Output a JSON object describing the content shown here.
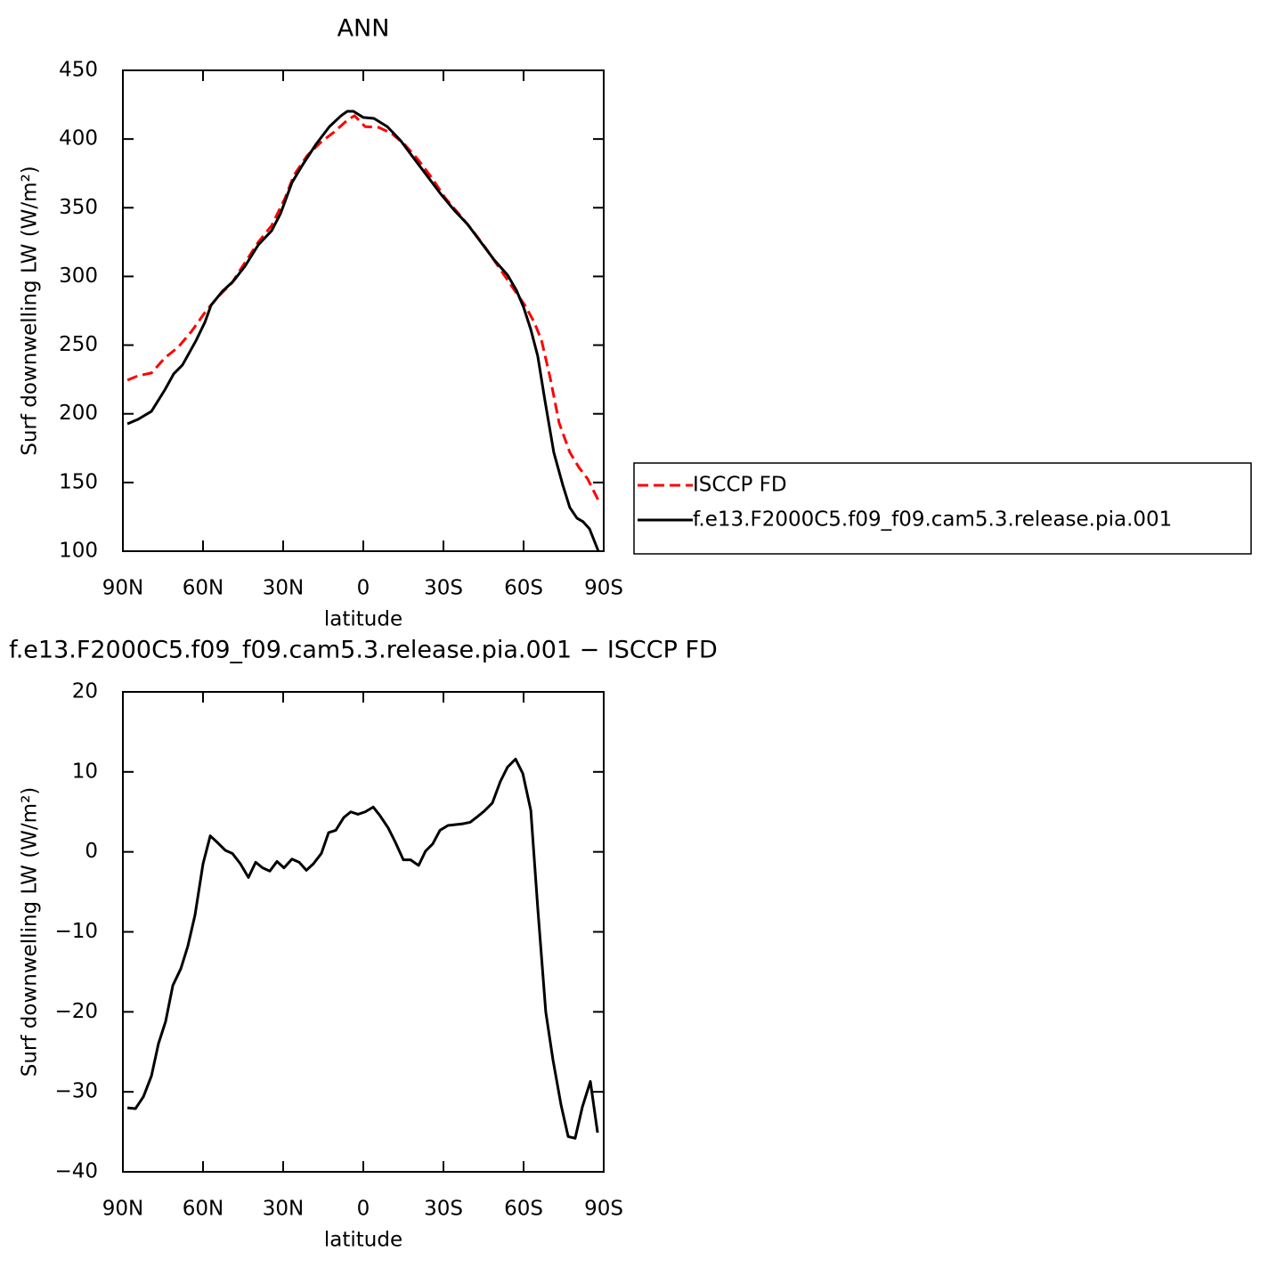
{
  "chart_data": [
    {
      "type": "line",
      "title": "ANN",
      "xlabel": "latitude",
      "ylabel": "Surf downwelling LW (W/m²)",
      "xlim": [
        90,
        -90
      ],
      "xticks": [
        {
          "value": 90,
          "label": "90N"
        },
        {
          "value": 60,
          "label": "60N"
        },
        {
          "value": 30,
          "label": "30N"
        },
        0,
        {
          "value": -30,
          "label": "30S"
        },
        {
          "value": -60,
          "label": "60S"
        },
        {
          "value": -90,
          "label": "90S"
        }
      ],
      "ylim": [
        100,
        450
      ],
      "yticks": [
        100,
        150,
        200,
        250,
        300,
        350,
        400,
        450
      ],
      "legend": "right",
      "series": [
        {
          "name": "ISCCP FD",
          "color": "#ff0000",
          "style": "dashed",
          "x": [
            88.3,
            84.3,
            79.3,
            74.3,
            69.3,
            64.3,
            59.3,
            54.3,
            49.3,
            44.3,
            39.3,
            34.3,
            29.3,
            26,
            21,
            16,
            11,
            6,
            3.3,
            -0.7,
            -5.7,
            -10.7,
            -15.7,
            -20.7,
            -25.7,
            -30.7,
            -35.7,
            -40.7,
            -45.7,
            -50.7,
            -55.7,
            -60.7,
            -64,
            -66.7,
            -70,
            -73.3,
            -77.3,
            -80.7,
            -84,
            -88
          ],
          "values": [
            224.5,
            227.7,
            229.7,
            240.7,
            248.5,
            260,
            273.7,
            285.4,
            295,
            310,
            325,
            337,
            357,
            373.5,
            388,
            397.5,
            405,
            413.7,
            417,
            409,
            408.5,
            404,
            395.6,
            384.5,
            371.6,
            357,
            345.7,
            334,
            321,
            306.8,
            292.5,
            278.3,
            266.6,
            253.6,
            225.8,
            193.4,
            172,
            161,
            152.5,
            137
          ]
        },
        {
          "name": "f.e13.F2000C5.f09_f09.cam5.3.release.pia.001",
          "color": "#000000",
          "style": "solid",
          "x": [
            88.3,
            84.3,
            79.3,
            74.3,
            71,
            67.7,
            62.7,
            59.3,
            57,
            52.7,
            48.7,
            44.3,
            39.3,
            34.3,
            31,
            26.7,
            22.7,
            17.7,
            12.7,
            8.3,
            6,
            3.7,
            0,
            -4,
            -9,
            -14,
            -19,
            -24,
            -29,
            -34,
            -39,
            -44,
            -49,
            -54,
            -57.3,
            -60,
            -62.7,
            -65.3,
            -68,
            -71.3,
            -74.7,
            -77.3,
            -80,
            -82.3,
            -84.7,
            -88
          ],
          "values": [
            192.7,
            196,
            201.8,
            217.4,
            229,
            235.5,
            253,
            266.6,
            279,
            289.3,
            296.4,
            307.4,
            323,
            333.3,
            345.7,
            368.3,
            381.3,
            396.2,
            409,
            417,
            420.2,
            420.2,
            415.7,
            415,
            409,
            398.8,
            385.8,
            372.9,
            360,
            348.3,
            338,
            325,
            312,
            301,
            290,
            277.6,
            261.4,
            242,
            209.6,
            172,
            148,
            131.8,
            124,
            121.4,
            116.2,
            100
          ]
        }
      ]
    },
    {
      "type": "line",
      "title": "f.e13.F2000C5.f09_f09.cam5.3.release.pia.001 − ISCCP FD",
      "xlabel": "latitude",
      "ylabel": "Surf downwelling LW (W/m²)",
      "xlim": [
        90,
        -90
      ],
      "xticks": [
        {
          "value": 90,
          "label": "90N"
        },
        {
          "value": 60,
          "label": "60N"
        },
        {
          "value": 30,
          "label": "30N"
        },
        0,
        {
          "value": -30,
          "label": "30S"
        },
        {
          "value": -60,
          "label": "60S"
        },
        {
          "value": -90,
          "label": "90S"
        }
      ],
      "ylim": [
        -40,
        20
      ],
      "yticks": [
        {
          "value": -40,
          "label": "−40"
        },
        {
          "value": -30,
          "label": "−30"
        },
        {
          "value": -20,
          "label": "−20"
        },
        {
          "value": -10,
          "label": "−10"
        },
        0,
        10,
        20
      ],
      "series": [
        {
          "color": "#000000",
          "style": "solid",
          "x": [
            88.3,
            85.3,
            82.3,
            79.3,
            76.7,
            74,
            71.3,
            68.3,
            65.7,
            63,
            60,
            57.3,
            54.7,
            51.7,
            49,
            46,
            43,
            40.3,
            37.7,
            35,
            32.3,
            29.7,
            26.7,
            24,
            21.3,
            18.7,
            15.7,
            13,
            10.3,
            7.3,
            4.7,
            2,
            -0.7,
            -3.7,
            -6.3,
            -9.3,
            -12,
            -15,
            -17.7,
            -20.7,
            -23.3,
            -26,
            -28.7,
            -31.7,
            -34.3,
            -37,
            -40,
            -42.7,
            -45.3,
            -48.3,
            -51.3,
            -54,
            -57,
            -59.7,
            -62.7,
            -65.3,
            -68.3,
            -71,
            -74,
            -76.7,
            -79.3,
            -82,
            -85,
            -87.7
          ],
          "values": [
            -32,
            -32.1,
            -30.6,
            -28,
            -24,
            -21.2,
            -16.7,
            -14.6,
            -11.8,
            -7.9,
            -1.5,
            2,
            1.2,
            0.2,
            -0.2,
            -1.5,
            -3.2,
            -1.3,
            -2,
            -2.4,
            -1.2,
            -2,
            -0.9,
            -1.3,
            -2.3,
            -1.5,
            -0.2,
            2.4,
            2.7,
            4.3,
            5,
            4.7,
            5,
            5.6,
            4.5,
            3,
            1.2,
            -1,
            -1,
            -1.7,
            0.1,
            1,
            2.7,
            3.3,
            3.4,
            3.5,
            3.7,
            4.4,
            5.1,
            6.1,
            8.8,
            10.6,
            11.6,
            9.8,
            5.2,
            -7,
            -20,
            -26,
            -31.6,
            -35.6,
            -35.8,
            -31.9,
            -28.7,
            -35.1
          ]
        }
      ]
    }
  ]
}
